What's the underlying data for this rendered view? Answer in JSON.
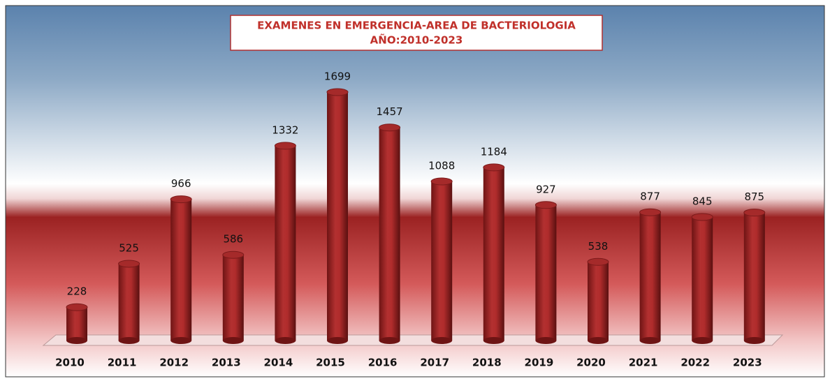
{
  "chart_data": {
    "type": "bar",
    "title": "EXAMENES EN EMERGENCIA-AREA DE BACTERIOLOGIA",
    "subtitle": "AÑO:2010-2023",
    "categories": [
      "2010",
      "2011",
      "2012",
      "2013",
      "2014",
      "2015",
      "2016",
      "2017",
      "2018",
      "2019",
      "2020",
      "2021",
      "2022",
      "2023"
    ],
    "values": [
      228,
      525,
      966,
      586,
      1332,
      1699,
      1457,
      1088,
      1184,
      927,
      538,
      877,
      845,
      875
    ],
    "color": "#a52a2a"
  }
}
